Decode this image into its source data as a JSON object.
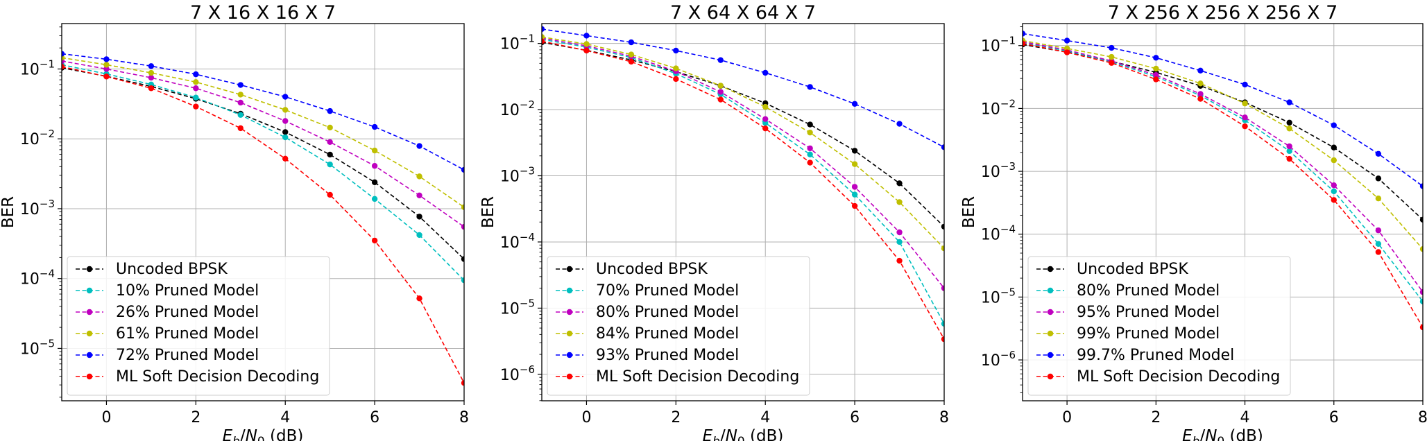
{
  "figure": {
    "xlabel_main": "E",
    "xlabel_sub1": "b",
    "xlabel_mid": "/N",
    "xlabel_sub2": "0",
    "xlabel_unit": " (dB)",
    "ylabel": "BER"
  },
  "chart_data": [
    {
      "type": "line",
      "title": "7 X 16 X 16 X 7",
      "xlabel": "Eb/N0 (dB)",
      "ylabel": "BER",
      "yscale": "log",
      "xlim": [
        -1,
        8
      ],
      "ylim_exp": [
        -5.75,
        -0.35
      ],
      "x": [
        -1,
        0,
        1,
        2,
        3,
        4,
        5,
        6,
        7,
        8
      ],
      "xticks": [
        "0",
        "2",
        "4",
        "6",
        "8"
      ],
      "yticks": [
        "10^-1",
        "10^-2",
        "10^-3",
        "10^-4",
        "10^-5"
      ],
      "legend_position": "lower-left",
      "series": [
        {
          "name": "Uncoded BPSK",
          "color": "#000000",
          "values": [
            0.104,
            0.0786,
            0.0563,
            0.0375,
            0.0229,
            0.0125,
            0.00595,
            0.00239,
            0.00077,
            0.00019
          ]
        },
        {
          "name": "10% Pruned Model",
          "color": "#00bfbf",
          "values": [
            0.115,
            0.085,
            0.06,
            0.039,
            0.022,
            0.0105,
            0.0043,
            0.00138,
            0.00042,
            9.45e-05
          ]
        },
        {
          "name": "26% Pruned Model",
          "color": "#bf00bf",
          "values": [
            0.13,
            0.1,
            0.075,
            0.053,
            0.033,
            0.018,
            0.009,
            0.0041,
            0.00155,
            0.00055
          ]
        },
        {
          "name": "61% Pruned Model",
          "color": "#bfbf00",
          "values": [
            0.145,
            0.115,
            0.088,
            0.065,
            0.043,
            0.026,
            0.0145,
            0.0068,
            0.0029,
            0.00105
          ]
        },
        {
          "name": "72% Pruned Model",
          "color": "#0000ff",
          "values": [
            0.165,
            0.138,
            0.11,
            0.084,
            0.059,
            0.04,
            0.025,
            0.0148,
            0.0079,
            0.0036
          ]
        },
        {
          "name": "ML Soft Decision Decoding",
          "color": "#ff0000",
          "values": [
            0.108,
            0.078,
            0.053,
            0.029,
            0.0142,
            0.0052,
            0.00158,
            0.00035,
            5.2e-05,
            3.2e-06
          ]
        }
      ]
    },
    {
      "type": "line",
      "title": "7 X 64 X 64 X 7",
      "xlabel": "Eb/N0 (dB)",
      "ylabel": "BER",
      "yscale": "log",
      "xlim": [
        -1,
        8
      ],
      "ylim_exp": [
        -6.4,
        -0.7
      ],
      "x": [
        -1,
        0,
        1,
        2,
        3,
        4,
        5,
        6,
        7,
        8
      ],
      "xticks": [
        "0",
        "2",
        "4",
        "6",
        "8"
      ],
      "yticks": [
        "10^-1",
        "10^-2",
        "10^-3",
        "10^-4",
        "10^-5",
        "10^-6"
      ],
      "legend_position": "lower-left",
      "series": [
        {
          "name": "Uncoded BPSK",
          "color": "#000000",
          "values": [
            0.104,
            0.0786,
            0.0563,
            0.0375,
            0.0229,
            0.0125,
            0.00595,
            0.00239,
            0.00077,
            0.00017
          ]
        },
        {
          "name": "70% Pruned Model",
          "color": "#00bfbf",
          "values": [
            0.115,
            0.088,
            0.061,
            0.035,
            0.017,
            0.0063,
            0.0021,
            0.00052,
            0.0001,
            5.8e-06
          ]
        },
        {
          "name": "80% Pruned Model",
          "color": "#bf00bf",
          "values": [
            0.12,
            0.092,
            0.064,
            0.038,
            0.0185,
            0.0072,
            0.0026,
            0.00068,
            0.00014,
            2e-05
          ]
        },
        {
          "name": "84% Pruned Model",
          "color": "#bfbf00",
          "values": [
            0.125,
            0.098,
            0.068,
            0.042,
            0.023,
            0.011,
            0.0045,
            0.0015,
            0.0004,
            8e-05
          ]
        },
        {
          "name": "93% Pruned Model",
          "color": "#0000ff",
          "values": [
            0.165,
            0.131,
            0.104,
            0.078,
            0.056,
            0.036,
            0.022,
            0.0122,
            0.0061,
            0.0027
          ]
        },
        {
          "name": "ML Soft Decision Decoding",
          "color": "#ff0000",
          "values": [
            0.108,
            0.078,
            0.053,
            0.029,
            0.0142,
            0.0052,
            0.00158,
            0.00035,
            5.2e-05,
            3.4e-06
          ]
        }
      ]
    },
    {
      "type": "line",
      "title": "7 X 256 X 256 X 256 X 7",
      "xlabel": "Eb/N0 (dB)",
      "ylabel": "BER",
      "yscale": "log",
      "xlim": [
        -1,
        8
      ],
      "ylim_exp": [
        -6.65,
        -0.65
      ],
      "x": [
        -1,
        0,
        1,
        2,
        3,
        4,
        5,
        6,
        7,
        8
      ],
      "xticks": [
        "0",
        "2",
        "4",
        "6",
        "8"
      ],
      "yticks": [
        "10^-1",
        "10^-2",
        "10^-3",
        "10^-4",
        "10^-5",
        "10^-6"
      ],
      "legend_position": "lower-left",
      "series": [
        {
          "name": "Uncoded BPSK",
          "color": "#000000",
          "values": [
            0.104,
            0.0786,
            0.0563,
            0.0375,
            0.0229,
            0.0125,
            0.00595,
            0.00239,
            0.00077,
            0.00017
          ]
        },
        {
          "name": "80% Pruned Model",
          "color": "#00bfbf",
          "values": [
            0.112,
            0.082,
            0.055,
            0.032,
            0.016,
            0.0065,
            0.0021,
            0.00048,
            7e-05,
            8.5e-06
          ]
        },
        {
          "name": "95% Pruned Model",
          "color": "#bf00bf",
          "values": [
            0.115,
            0.085,
            0.057,
            0.034,
            0.017,
            0.0072,
            0.0025,
            0.0006,
            0.000115,
            1.2e-05
          ]
        },
        {
          "name": "99% Pruned Model",
          "color": "#bfbf00",
          "values": [
            0.12,
            0.09,
            0.066,
            0.043,
            0.025,
            0.012,
            0.0048,
            0.0015,
            0.00037,
            5.8e-05
          ]
        },
        {
          "name": "99.7% Pruned Model",
          "color": "#0000ff",
          "values": [
            0.155,
            0.12,
            0.092,
            0.064,
            0.04,
            0.024,
            0.0125,
            0.0054,
            0.0019,
            0.00058
          ]
        },
        {
          "name": "ML Soft Decision Decoding",
          "color": "#ff0000",
          "values": [
            0.108,
            0.078,
            0.053,
            0.029,
            0.0142,
            0.0052,
            0.00158,
            0.00035,
            5.2e-05,
            3.3e-06
          ]
        }
      ]
    }
  ]
}
